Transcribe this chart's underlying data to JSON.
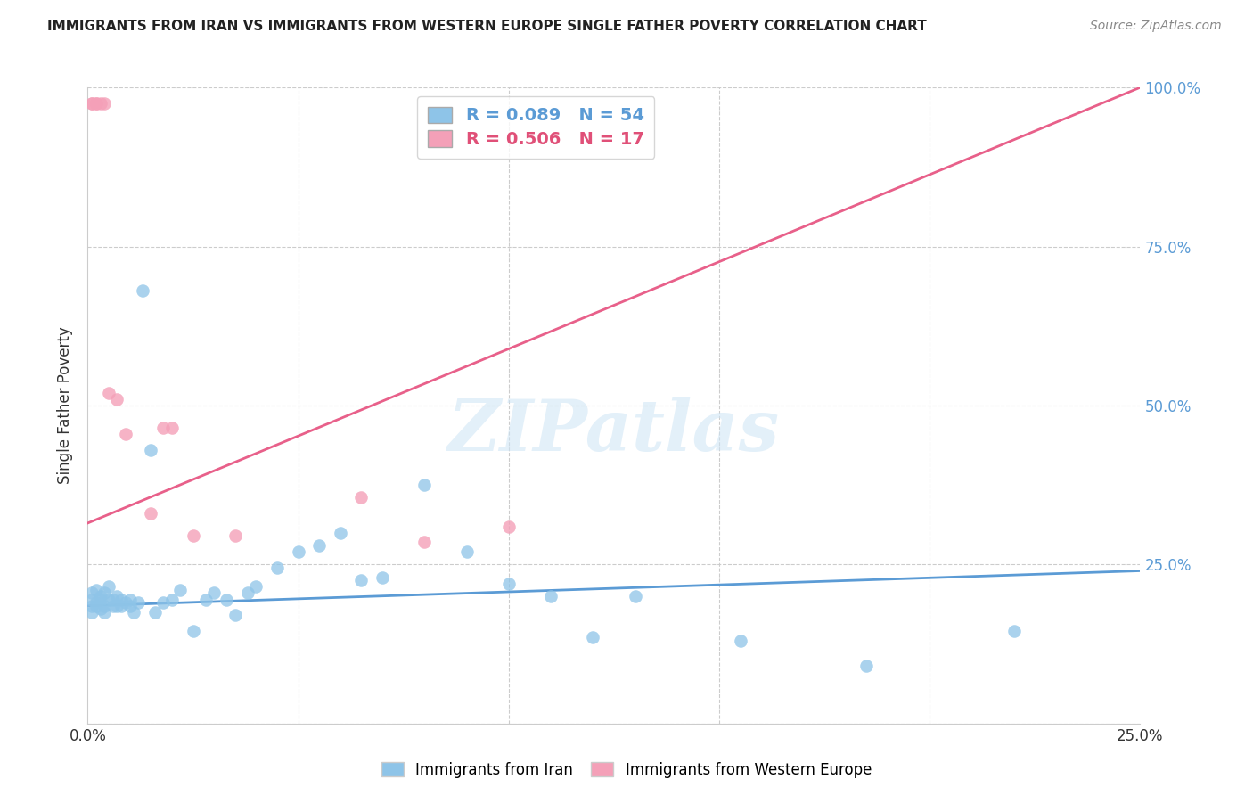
{
  "title": "IMMIGRANTS FROM IRAN VS IMMIGRANTS FROM WESTERN EUROPE SINGLE FATHER POVERTY CORRELATION CHART",
  "source": "Source: ZipAtlas.com",
  "ylabel": "Single Father Poverty",
  "xlim": [
    0,
    0.25
  ],
  "ylim": [
    0,
    1.0
  ],
  "blue_R": 0.089,
  "blue_N": 54,
  "pink_R": 0.506,
  "pink_N": 17,
  "legend_label_blue": "Immigrants from Iran",
  "legend_label_pink": "Immigrants from Western Europe",
  "blue_color": "#8ec4e8",
  "pink_color": "#f4a0b8",
  "blue_line_color": "#5b9bd5",
  "pink_line_color": "#e8608a",
  "blue_scatter_x": [
    0.001,
    0.001,
    0.001,
    0.001,
    0.002,
    0.002,
    0.002,
    0.003,
    0.003,
    0.003,
    0.004,
    0.004,
    0.004,
    0.005,
    0.005,
    0.006,
    0.006,
    0.007,
    0.007,
    0.008,
    0.008,
    0.009,
    0.01,
    0.01,
    0.011,
    0.012,
    0.013,
    0.015,
    0.016,
    0.018,
    0.02,
    0.022,
    0.025,
    0.028,
    0.03,
    0.033,
    0.035,
    0.038,
    0.04,
    0.045,
    0.05,
    0.055,
    0.06,
    0.065,
    0.07,
    0.08,
    0.09,
    0.1,
    0.11,
    0.12,
    0.13,
    0.155,
    0.185,
    0.22
  ],
  "blue_scatter_y": [
    0.185,
    0.195,
    0.205,
    0.175,
    0.19,
    0.21,
    0.185,
    0.195,
    0.18,
    0.2,
    0.185,
    0.205,
    0.175,
    0.195,
    0.215,
    0.185,
    0.195,
    0.2,
    0.185,
    0.195,
    0.185,
    0.19,
    0.185,
    0.195,
    0.175,
    0.19,
    0.68,
    0.43,
    0.175,
    0.19,
    0.195,
    0.21,
    0.145,
    0.195,
    0.205,
    0.195,
    0.17,
    0.205,
    0.215,
    0.245,
    0.27,
    0.28,
    0.3,
    0.225,
    0.23,
    0.375,
    0.27,
    0.22,
    0.2,
    0.135,
    0.2,
    0.13,
    0.09,
    0.145
  ],
  "pink_scatter_x": [
    0.001,
    0.001,
    0.002,
    0.002,
    0.003,
    0.004,
    0.005,
    0.007,
    0.009,
    0.015,
    0.018,
    0.02,
    0.025,
    0.035,
    0.065,
    0.08,
    0.1
  ],
  "pink_scatter_y": [
    0.975,
    0.975,
    0.975,
    0.975,
    0.975,
    0.975,
    0.52,
    0.51,
    0.455,
    0.33,
    0.465,
    0.465,
    0.295,
    0.295,
    0.355,
    0.285,
    0.31
  ],
  "blue_line_x": [
    0.0,
    0.25
  ],
  "blue_line_y": [
    0.185,
    0.24
  ],
  "pink_line_x": [
    0.0,
    0.25
  ],
  "pink_line_y": [
    0.315,
    1.0
  ]
}
